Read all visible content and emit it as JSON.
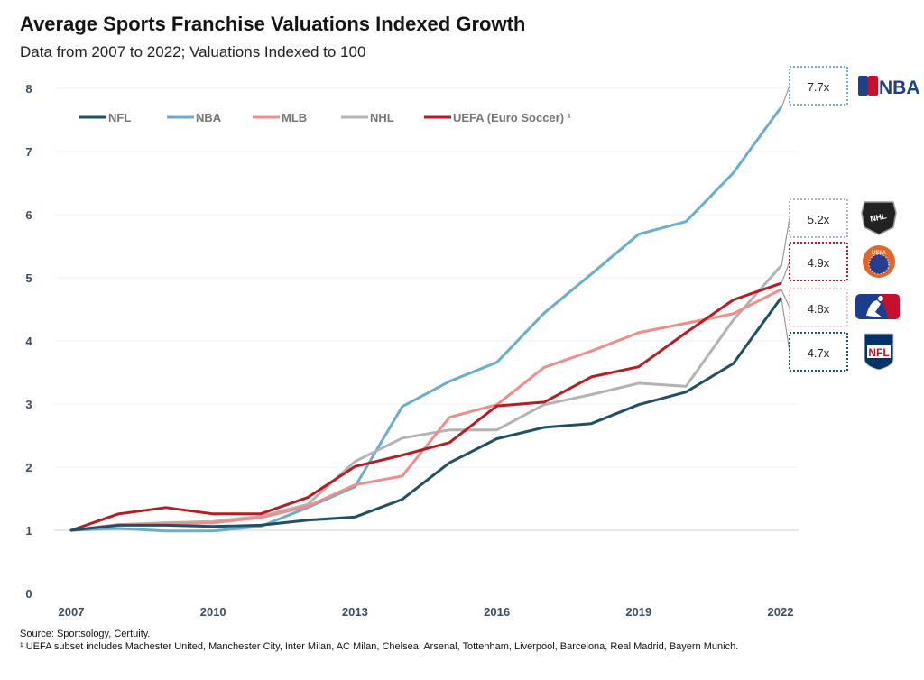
{
  "header": {
    "title": "Average Sports Franchise Valuations Indexed Growth",
    "subtitle": "Data from 2007 to 2022; Valuations Indexed to 100"
  },
  "footer": {
    "source": "Source: Sportsology, Certuity.",
    "note": "¹ UEFA subset includes  Machester United, Manchester City, Inter Milan, AC Milan, Chelsea, Arsenal, Tottenham, Liverpool, Barcelona, Real Madrid, Bayern Munich."
  },
  "chart_data": {
    "type": "line",
    "title": "Average Sports Franchise Valuations Indexed Growth",
    "subtitle": "Data from 2007 to 2022; Valuations Indexed to 100",
    "x": [
      2007,
      2008,
      2009,
      2010,
      2011,
      2012,
      2013,
      2014,
      2015,
      2016,
      2017,
      2018,
      2019,
      2020,
      2021,
      2022
    ],
    "x_ticks": [
      "2007",
      "2010",
      "2013",
      "2016",
      "2019",
      "2022"
    ],
    "y_ticks": [
      "0",
      "1",
      "2",
      "3",
      "4",
      "5",
      "6",
      "7",
      "8"
    ],
    "ylim": [
      0,
      8
    ],
    "grid": true,
    "legend": "top-left",
    "series": [
      {
        "name": "NFL",
        "color": "#1f5164",
        "values": [
          1.0,
          1.08,
          1.08,
          1.06,
          1.08,
          1.16,
          1.21,
          1.49,
          2.07,
          2.45,
          2.63,
          2.69,
          2.99,
          3.19,
          3.64,
          4.67
        ]
      },
      {
        "name": "NBA",
        "color": "#6aaecb",
        "values": [
          1.0,
          1.03,
          0.99,
          0.99,
          1.06,
          1.36,
          1.69,
          2.96,
          3.36,
          3.66,
          4.44,
          5.06,
          5.69,
          5.89,
          6.66,
          7.69
        ]
      },
      {
        "name": "MLB",
        "color": "#f08c8c",
        "values": [
          1.0,
          1.09,
          1.1,
          1.12,
          1.2,
          1.38,
          1.72,
          1.86,
          2.79,
          2.99,
          3.58,
          3.84,
          4.13,
          4.28,
          4.43,
          4.81
        ]
      },
      {
        "name": "NHL",
        "color": "#b3b3b3",
        "values": [
          1.0,
          1.09,
          1.12,
          1.14,
          1.22,
          1.41,
          2.09,
          2.46,
          2.59,
          2.59,
          2.99,
          3.15,
          3.33,
          3.28,
          4.33,
          5.18
        ]
      },
      {
        "name": "UEFA (Euro Soccer) ¹",
        "color": "#b71c22",
        "values": [
          1.0,
          1.26,
          1.36,
          1.26,
          1.26,
          1.52,
          2.01,
          2.19,
          2.39,
          2.97,
          3.03,
          3.43,
          3.59,
          4.13,
          4.65,
          4.91
        ]
      }
    ],
    "callouts": [
      {
        "label": "7.7x",
        "series": "NBA",
        "color": "#6aaecb",
        "logo": "NBA"
      },
      {
        "label": "5.2x",
        "series": "NHL",
        "color": "#b3b3b3",
        "logo": "NHL"
      },
      {
        "label": "4.9x",
        "series": "UEFA (Euro Soccer) ¹",
        "color": "#b71c22",
        "logo": "UEFA"
      },
      {
        "label": "4.8x",
        "series": "MLB",
        "color": "#f08c8c",
        "logo": "MLB"
      },
      {
        "label": "4.7x",
        "series": "NFL",
        "color": "#1f5164",
        "logo": "NFL"
      }
    ]
  }
}
